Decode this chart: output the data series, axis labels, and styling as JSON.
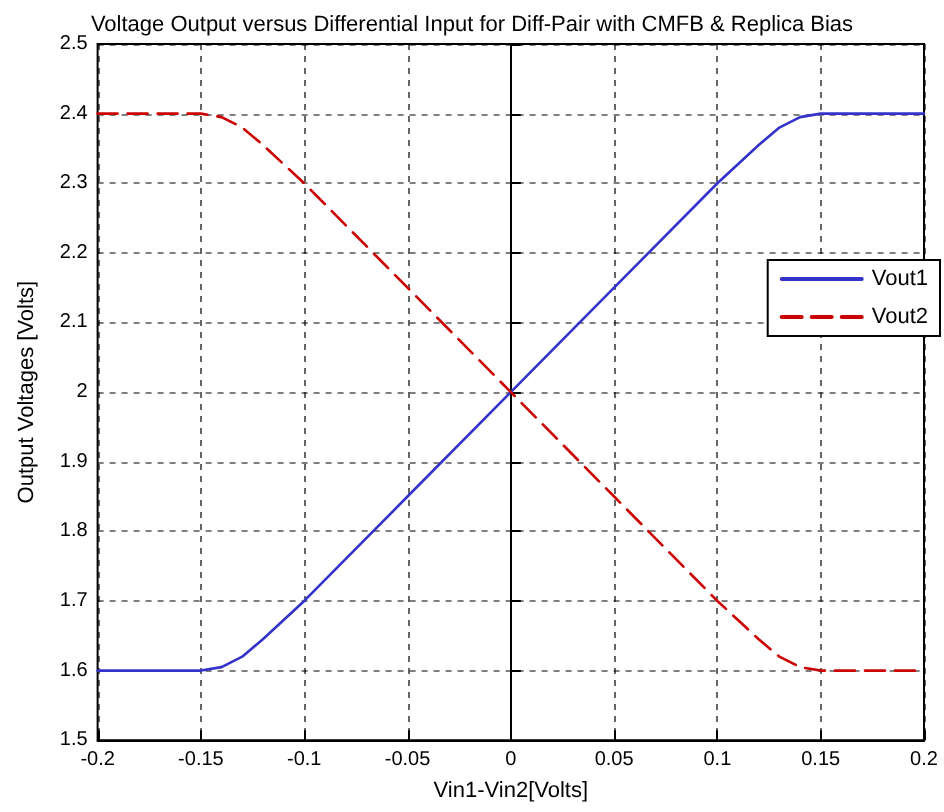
{
  "chart_data": {
    "type": "line",
    "title": "Voltage Output versus Differential Input for Diff-Pair with CMFB & Replica Bias",
    "xlabel": "Vin1-Vin2[Volts]",
    "ylabel": "Output Voltages [Volts]",
    "x": [
      -0.2,
      -0.15,
      -0.14,
      -0.13,
      -0.12,
      -0.1,
      -0.05,
      0,
      0.05,
      0.1,
      0.12,
      0.13,
      0.14,
      0.15,
      0.2
    ],
    "series": [
      {
        "name": "Vout1",
        "color": "#3333cc",
        "line_style": "solid",
        "values": [
          1.6,
          1.6,
          1.605,
          1.62,
          1.645,
          1.7,
          1.85,
          2.0,
          2.15,
          2.3,
          2.355,
          2.38,
          2.395,
          2.4,
          2.4
        ]
      },
      {
        "name": "Vout2",
        "color": "#cc0000",
        "line_style": "dashed",
        "values": [
          2.4,
          2.4,
          2.395,
          2.38,
          2.355,
          2.3,
          2.15,
          2.0,
          1.85,
          1.7,
          1.645,
          1.62,
          1.605,
          1.6,
          1.6
        ]
      }
    ],
    "xlim": [
      -0.2,
      0.2
    ],
    "xticks": [
      -0.2,
      -0.15,
      -0.1,
      -0.05,
      0,
      0.05,
      0.1,
      0.15,
      0.2
    ],
    "ylim": [
      1.5,
      2.5
    ],
    "yticks": [
      1.5,
      1.6,
      1.7,
      1.8,
      1.9,
      2,
      2.1,
      2.2,
      2.3,
      2.4,
      2.5
    ],
    "grid": true,
    "legend": "top right",
    "marker": "none"
  }
}
